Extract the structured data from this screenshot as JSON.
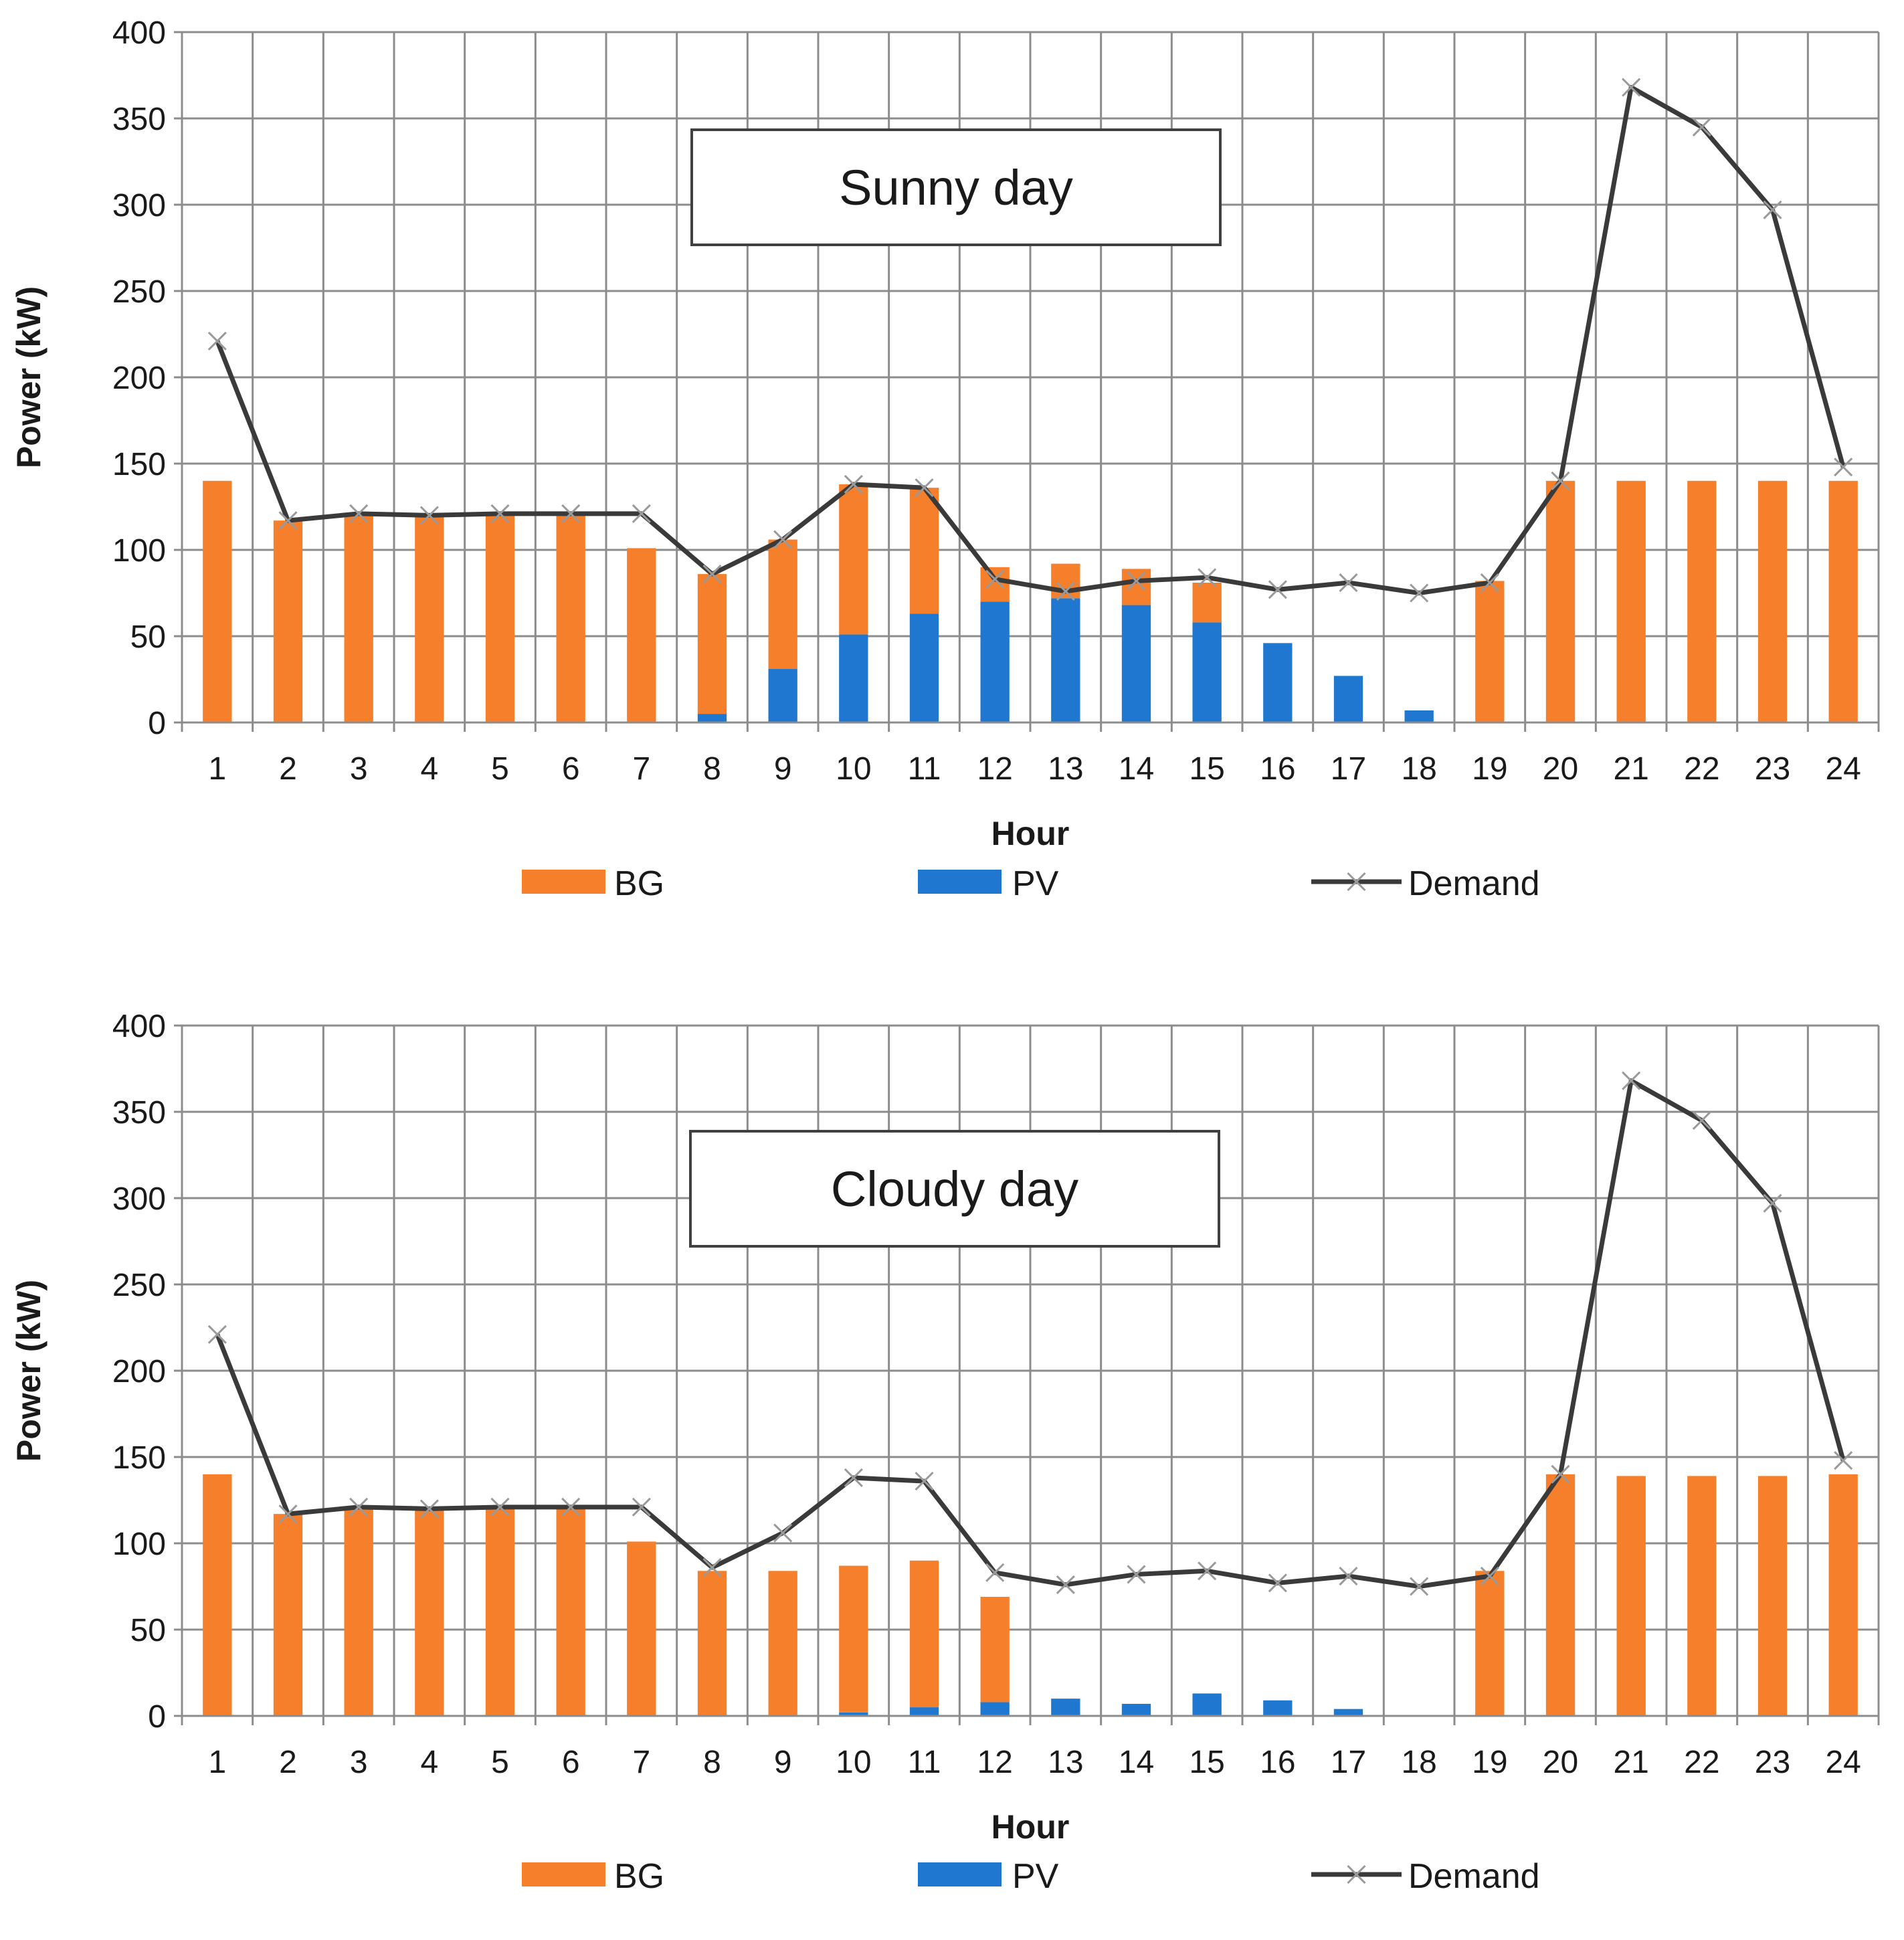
{
  "chart_data": [
    {
      "type": "bar",
      "stacked": true,
      "title": "Sunny day",
      "xlabel": "Hour",
      "ylabel": "Power (kW)",
      "ylim": [
        0,
        400
      ],
      "yticks": [
        0,
        50,
        100,
        150,
        200,
        250,
        300,
        350,
        400
      ],
      "grid": true,
      "legend_position": "bottom",
      "categories": [
        "1",
        "2",
        "3",
        "4",
        "5",
        "6",
        "7",
        "8",
        "9",
        "10",
        "11",
        "12",
        "13",
        "14",
        "15",
        "16",
        "17",
        "18",
        "19",
        "20",
        "21",
        "22",
        "23",
        "24"
      ],
      "series": [
        {
          "name": "PV",
          "type": "bar",
          "color": "#1f77d0",
          "values": [
            0,
            0,
            0,
            0,
            0,
            0,
            0,
            5,
            31,
            51,
            63,
            70,
            72,
            68,
            58,
            46,
            27,
            7,
            0,
            0,
            0,
            0,
            0,
            0
          ]
        },
        {
          "name": "BG",
          "type": "bar",
          "color": "#f57f2b",
          "values": [
            140,
            117,
            121,
            120,
            121,
            121,
            101,
            81,
            75,
            87,
            73,
            20,
            20,
            21,
            23,
            0,
            0,
            0,
            82,
            140,
            140,
            140,
            140,
            140
          ]
        },
        {
          "name": "Demand",
          "type": "line",
          "color": "#3a3a3a",
          "marker": "x",
          "values": [
            221,
            117,
            121,
            120,
            121,
            121,
            121,
            86,
            106,
            138,
            136,
            83,
            76,
            82,
            84,
            77,
            81,
            75,
            81,
            140,
            368,
            345,
            297,
            148
          ]
        }
      ]
    },
    {
      "type": "bar",
      "stacked": true,
      "title": "Cloudy day",
      "xlabel": "Hour",
      "ylabel": "Power (kW)",
      "ylim": [
        0,
        400
      ],
      "yticks": [
        0,
        50,
        100,
        150,
        200,
        250,
        300,
        350,
        400
      ],
      "grid": true,
      "legend_position": "bottom",
      "categories": [
        "1",
        "2",
        "3",
        "4",
        "5",
        "6",
        "7",
        "8",
        "9",
        "10",
        "11",
        "12",
        "13",
        "14",
        "15",
        "16",
        "17",
        "18",
        "19",
        "20",
        "21",
        "22",
        "23",
        "24"
      ],
      "series": [
        {
          "name": "PV",
          "type": "bar",
          "color": "#1f77d0",
          "values": [
            0,
            0,
            0,
            0,
            0,
            0,
            0,
            0,
            0,
            2,
            5,
            8,
            10,
            7,
            13,
            9,
            4,
            0,
            0,
            0,
            0,
            0,
            0,
            0
          ]
        },
        {
          "name": "BG",
          "type": "bar",
          "color": "#f57f2b",
          "values": [
            140,
            117,
            121,
            120,
            121,
            121,
            101,
            84,
            84,
            85,
            85,
            61,
            0,
            0,
            0,
            0,
            0,
            0,
            84,
            140,
            139,
            139,
            139,
            140
          ]
        },
        {
          "name": "Demand",
          "type": "line",
          "color": "#3a3a3a",
          "marker": "x",
          "values": [
            221,
            117,
            121,
            120,
            121,
            121,
            121,
            86,
            106,
            138,
            136,
            83,
            76,
            82,
            84,
            77,
            81,
            75,
            81,
            140,
            368,
            345,
            297,
            148
          ]
        }
      ]
    }
  ],
  "legend": {
    "bg": "BG",
    "pv": "PV",
    "demand": "Demand"
  }
}
